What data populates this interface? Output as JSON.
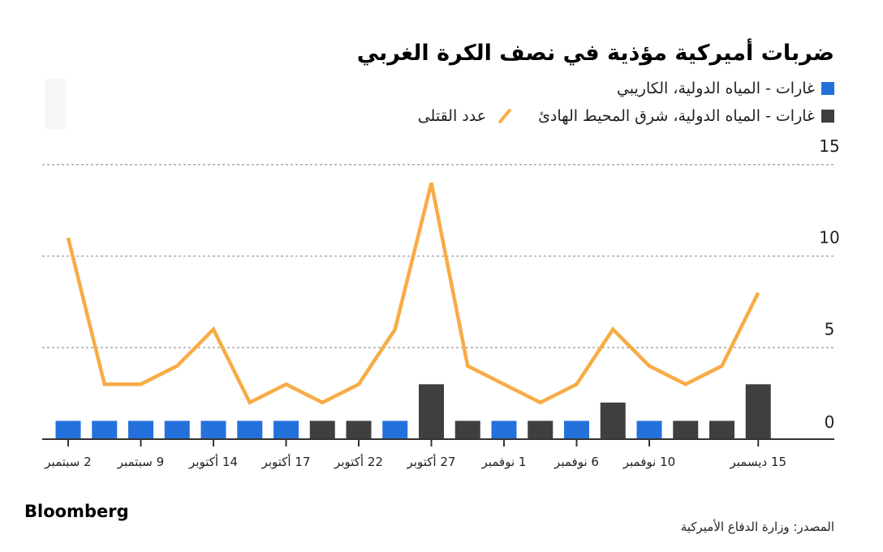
{
  "chart_data": {
    "type": "bar",
    "title": "ضربات أميركية مؤذية في نصف الكرة الغربي",
    "legend": [
      {
        "name": "غارات - المياه الدولية، الكاريبي",
        "color": "#2571db",
        "kind": "bar"
      },
      {
        "name": "غارات - المياه الدولية، شرق المحيط الهادئ",
        "color": "#3f3f3f",
        "kind": "bar"
      },
      {
        "name": "عدد القتلى",
        "color": "#f7ac45",
        "kind": "line"
      }
    ],
    "legend_placement": "top-right",
    "x_ticks": [
      {
        "index": 0,
        "label": "2 سبتمبر"
      },
      {
        "index": 2,
        "label": "9 سبتمبر"
      },
      {
        "index": 4,
        "label": "14 أكتوبر"
      },
      {
        "index": 6,
        "label": "17 أكتوبر"
      },
      {
        "index": 8,
        "label": "22 أكتوبر"
      },
      {
        "index": 10,
        "label": "27 أكتوبر"
      },
      {
        "index": 12,
        "label": "1 نوفمبر"
      },
      {
        "index": 14,
        "label": "6 نوفمبر"
      },
      {
        "index": 16,
        "label": "10 نوفمبر"
      },
      {
        "index": 19,
        "label": "15 ديسمبر"
      }
    ],
    "bars": [
      {
        "v": 1,
        "s": 0
      },
      {
        "v": 1,
        "s": 0
      },
      {
        "v": 1,
        "s": 0
      },
      {
        "v": 1,
        "s": 0
      },
      {
        "v": 1,
        "s": 0
      },
      {
        "v": 1,
        "s": 0
      },
      {
        "v": 1,
        "s": 0
      },
      {
        "v": 1,
        "s": 1
      },
      {
        "v": 1,
        "s": 1
      },
      {
        "v": 1,
        "s": 0
      },
      {
        "v": 3,
        "s": 1
      },
      {
        "v": 1,
        "s": 1
      },
      {
        "v": 1,
        "s": 0
      },
      {
        "v": 1,
        "s": 1
      },
      {
        "v": 1,
        "s": 0
      },
      {
        "v": 2,
        "s": 1
      },
      {
        "v": 1,
        "s": 0
      },
      {
        "v": 1,
        "s": 1
      },
      {
        "v": 1,
        "s": 1
      },
      {
        "v": 3,
        "s": 1
      }
    ],
    "deaths": [
      11,
      3,
      3,
      4,
      6,
      2,
      3,
      2,
      3,
      6,
      14,
      4,
      3,
      2,
      3,
      6,
      4,
      3,
      4,
      8
    ],
    "y_ticks": [
      0,
      5,
      10,
      15
    ],
    "ylim": [
      0,
      15
    ],
    "grid": true
  },
  "brand": "Bloomberg",
  "source": "المصدر: وزارة الدفاع الأميركية"
}
